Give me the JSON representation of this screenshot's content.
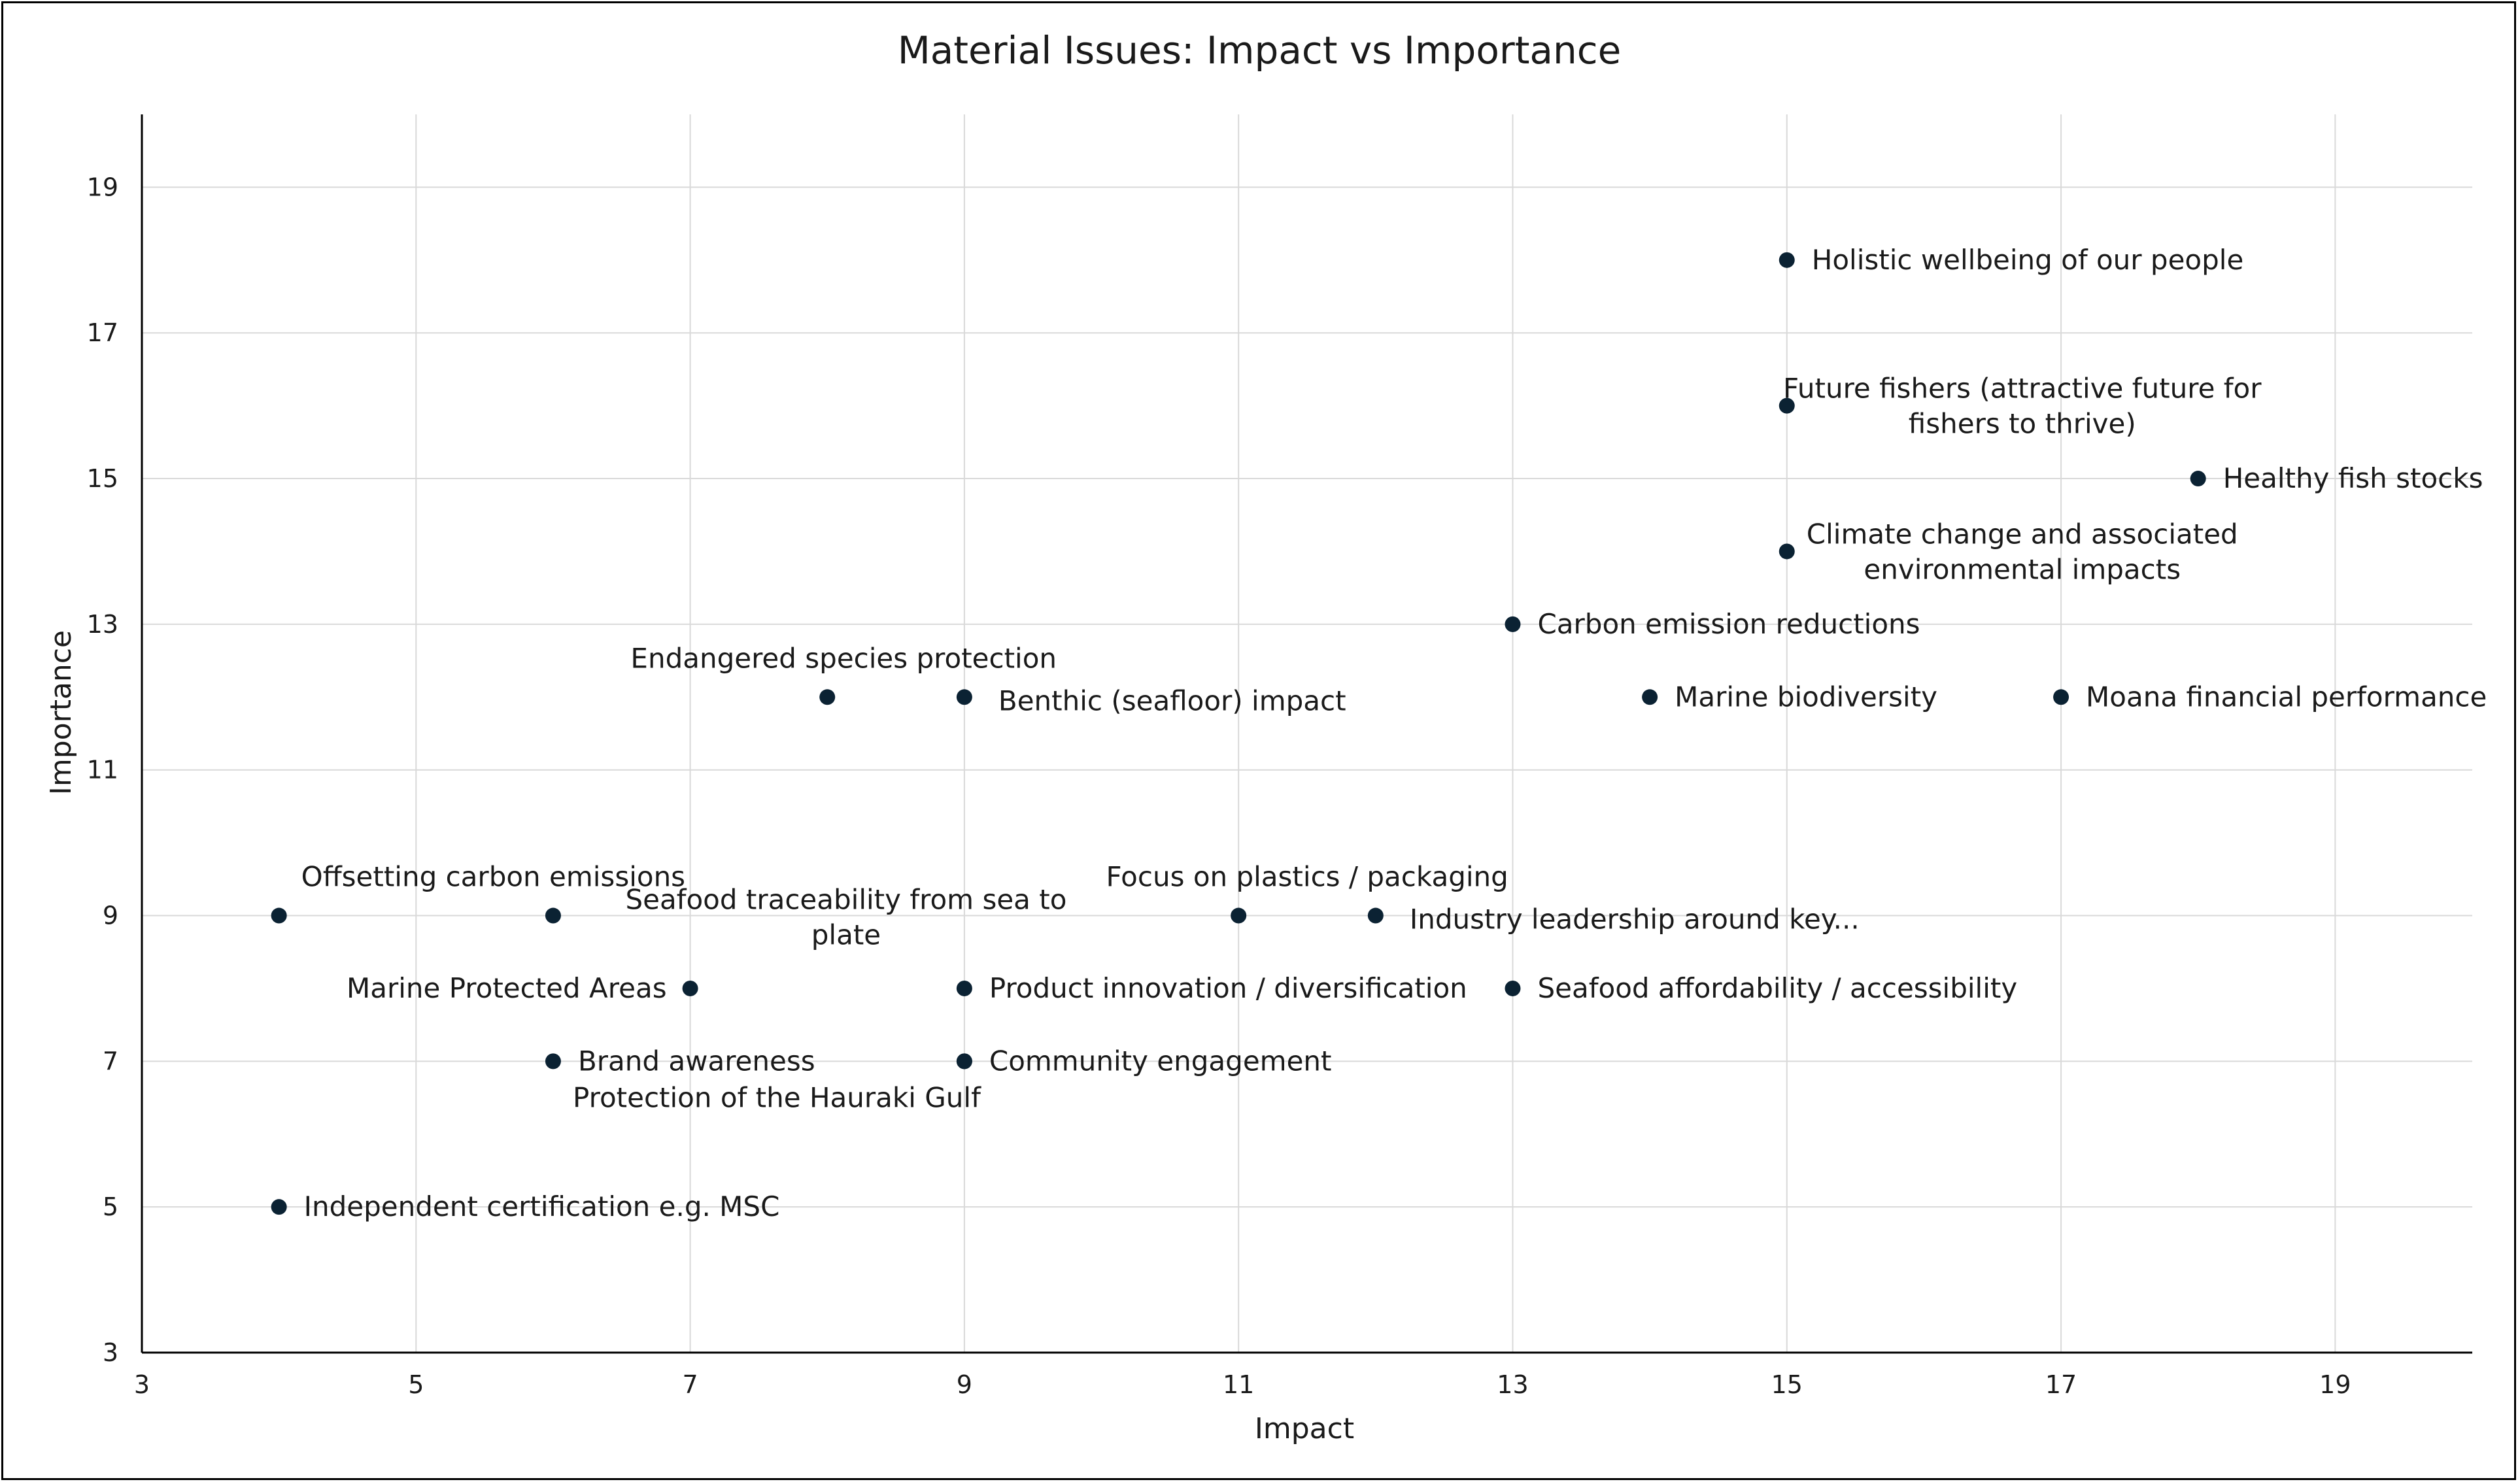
{
  "chart_data": {
    "type": "scatter",
    "title": "Material Issues: Impact vs Importance",
    "xlabel": "Impact",
    "ylabel": "Importance",
    "xlim": [
      3,
      20
    ],
    "ylim": [
      3,
      20
    ],
    "xticks": [
      3,
      5,
      7,
      9,
      11,
      13,
      15,
      17,
      19
    ],
    "yticks": [
      3,
      5,
      7,
      9,
      11,
      13,
      15,
      17,
      19
    ],
    "grid": true,
    "point_color": "#0b2233",
    "points": [
      {
        "label": "Holistic wellbeing of our people",
        "x": 15,
        "y": 18,
        "pos": "right"
      },
      {
        "label": [
          "Future fishers (attractive future for",
          "fishers to thrive)"
        ],
        "x": 15,
        "y": 16,
        "pos": "right-multiline"
      },
      {
        "label": "Healthy fish stocks",
        "x": 18,
        "y": 15,
        "pos": "right"
      },
      {
        "label": [
          "Climate change and associated",
          "environmental impacts"
        ],
        "x": 15,
        "y": 14,
        "pos": "right-multiline"
      },
      {
        "label": "Carbon emission reductions",
        "x": 13,
        "y": 13,
        "pos": "right"
      },
      {
        "label": "Endangered species protection",
        "x": 8,
        "y": 12,
        "pos": "above"
      },
      {
        "label": "Benthic (seafloor) impact",
        "x": 9,
        "y": 12,
        "pos": "right-below"
      },
      {
        "label": "Marine biodiversity",
        "x": 14,
        "y": 12,
        "pos": "right"
      },
      {
        "label": "Moana financial performance",
        "x": 17,
        "y": 12,
        "pos": "right"
      },
      {
        "label": "Offsetting carbon emissions",
        "x": 4,
        "y": 9,
        "pos": "above-right"
      },
      {
        "label": [
          "Seafood traceability from sea to",
          "plate"
        ],
        "x": 6,
        "y": 9,
        "pos": "below-right-multiline"
      },
      {
        "label": "Focus on plastics / packaging",
        "x": 11,
        "y": 9,
        "pos": "above"
      },
      {
        "label": "Industry leadership around key...",
        "x": 12,
        "y": 9,
        "pos": "right-below"
      },
      {
        "label": "Marine Protected Areas",
        "x": 7,
        "y": 8,
        "pos": "left"
      },
      {
        "label": "Product innovation / diversification",
        "x": 9,
        "y": 8,
        "pos": "right"
      },
      {
        "label": "Seafood affordability / accessibility",
        "x": 13,
        "y": 8,
        "pos": "right"
      },
      {
        "label": "Brand awareness",
        "x": 6,
        "y": 7,
        "pos": "right"
      },
      {
        "label": "Protection of the Hauraki Gulf",
        "x": 9,
        "y": 7,
        "pos": "below-left"
      },
      {
        "label": "Community engagement",
        "x": 9,
        "y": 7,
        "pos": "right"
      },
      {
        "label": "Independent certification e.g. MSC",
        "x": 4,
        "y": 5,
        "pos": "right"
      }
    ]
  }
}
